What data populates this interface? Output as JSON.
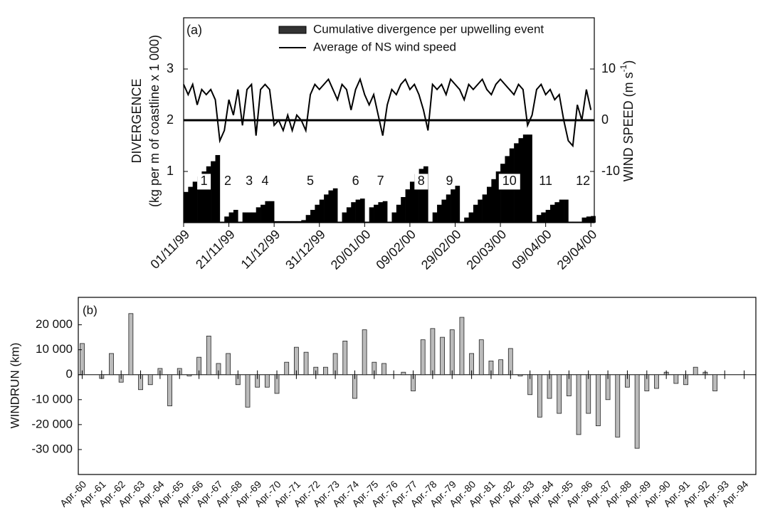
{
  "chart_data": [
    {
      "type": "combo",
      "panel_label": "(a)",
      "ylabel": [
        "DIVERGENCE",
        "(kg per m of coastline x 1 000)"
      ],
      "y2label": [
        "WIND SPEED (m s",
        "-1",
        ")"
      ],
      "legend": "top",
      "zero_line": true,
      "x": [
        0,
        2,
        4,
        6,
        8,
        10,
        12,
        14,
        16,
        18,
        20,
        22,
        24,
        26,
        28,
        30,
        32,
        34,
        36,
        38,
        40,
        42,
        44,
        46,
        48,
        50,
        52,
        54,
        56,
        58,
        60,
        62,
        64,
        66,
        68,
        70,
        72,
        74,
        76,
        78,
        80,
        82,
        84,
        86,
        88,
        90,
        92,
        94,
        96,
        98,
        100,
        102,
        104,
        106,
        108,
        110,
        112,
        114,
        116,
        118,
        120,
        122,
        124,
        126,
        128,
        130,
        132,
        134,
        136,
        138,
        140,
        142,
        144,
        146,
        148,
        150,
        152,
        154,
        156,
        158,
        160,
        162,
        164,
        166,
        168,
        170,
        172,
        174,
        176,
        178,
        180
      ],
      "xlim": [
        0,
        181.5
      ],
      "xticks": [
        {
          "value": 0,
          "label": "01/11/99"
        },
        {
          "value": 20,
          "label": "21/11/99"
        },
        {
          "value": 40,
          "label": "11/12/99"
        },
        {
          "value": 60,
          "label": "31/12/99"
        },
        {
          "value": 80,
          "label": "20/01/00"
        },
        {
          "value": 100,
          "label": "09/02/00"
        },
        {
          "value": 120,
          "label": "29/02/00"
        },
        {
          "value": 140,
          "label": "20/03/00"
        },
        {
          "value": 160,
          "label": "09/04/00"
        },
        {
          "value": 180,
          "label": "29/04/00"
        }
      ],
      "ylim": [
        0,
        4
      ],
      "yticks": [
        1,
        2,
        3
      ],
      "y2lim": [
        -20,
        20
      ],
      "y2ticks": [
        -10,
        0,
        10
      ],
      "series": [
        {
          "name": "Cumulative divergence per upwelling event",
          "type": "bar",
          "color": "#000000",
          "legend_color": "#333333",
          "values": [
            0.6,
            0.7,
            0.8,
            0.9,
            1.0,
            1.1,
            1.2,
            1.32,
            0.02,
            0.12,
            0.2,
            0.25,
            0.02,
            0.2,
            0.2,
            0.2,
            0.3,
            0.35,
            0.42,
            0.42,
            0.03,
            0.03,
            0.03,
            0.03,
            0.03,
            0.03,
            0.05,
            0.15,
            0.25,
            0.35,
            0.45,
            0.55,
            0.63,
            0.67,
            0.02,
            0.2,
            0.3,
            0.4,
            0.45,
            0.47,
            0.02,
            0.3,
            0.35,
            0.4,
            0.42,
            0.02,
            0.2,
            0.35,
            0.5,
            0.65,
            0.8,
            0.95,
            1.05,
            1.1,
            0.02,
            0.2,
            0.35,
            0.45,
            0.55,
            0.65,
            0.72,
            0.02,
            0.1,
            0.2,
            0.35,
            0.45,
            0.55,
            0.7,
            0.85,
            1.0,
            1.15,
            1.3,
            1.45,
            1.55,
            1.65,
            1.72,
            1.72,
            0.02,
            0.15,
            0.2,
            0.25,
            0.35,
            0.4,
            0.45,
            0.45,
            0.02,
            0.02,
            0.02,
            0.1,
            0.12,
            0.13
          ]
        },
        {
          "name": "Average of NS wind speed",
          "type": "line",
          "axis": "y2",
          "color": "#000000",
          "values": [
            7,
            5,
            7,
            3,
            6,
            5,
            6,
            4,
            -4,
            -2,
            4,
            1,
            6,
            -1,
            6,
            7,
            -3,
            6,
            7,
            6,
            -1,
            0,
            -2,
            1,
            -2,
            1,
            0,
            -2,
            5,
            7,
            6,
            7,
            8,
            6,
            4,
            7,
            6,
            2,
            6,
            8,
            5,
            3,
            5,
            1,
            -3,
            3,
            6,
            5,
            7,
            8,
            6,
            7,
            5,
            2,
            -2,
            7,
            6,
            7,
            5,
            8,
            7,
            6,
            4,
            7,
            6,
            7,
            8,
            6,
            5,
            7,
            8,
            7,
            6,
            5,
            7,
            6,
            -1,
            1,
            6,
            7,
            5,
            6,
            4,
            5,
            0,
            -4,
            -5,
            3,
            0,
            6,
            2
          ]
        }
      ],
      "annotations": [
        {
          "text": "1",
          "x": 9,
          "y": 0.8,
          "boxed": true
        },
        {
          "text": "2",
          "x": 19.5,
          "y": 0.8
        },
        {
          "text": "3",
          "x": 29,
          "y": 0.8
        },
        {
          "text": "4",
          "x": 36,
          "y": 0.8
        },
        {
          "text": "5",
          "x": 56,
          "y": 0.8
        },
        {
          "text": "6",
          "x": 76,
          "y": 0.8
        },
        {
          "text": "7",
          "x": 87,
          "y": 0.8
        },
        {
          "text": "8",
          "x": 105,
          "y": 0.8,
          "boxed": true
        },
        {
          "text": "9",
          "x": 117.5,
          "y": 0.8
        },
        {
          "text": "10",
          "x": 144,
          "y": 0.8,
          "boxed": true
        },
        {
          "text": "11",
          "x": 160,
          "y": 0.8
        },
        {
          "text": "12",
          "x": 176.5,
          "y": 0.8
        }
      ]
    },
    {
      "type": "bar",
      "panel_label": "(b)",
      "ylabel": "WINDRUN (km)",
      "zero_line": true,
      "color": "#bbbbbb",
      "x": [
        60,
        60.5,
        61,
        61.5,
        62,
        62.5,
        63,
        63.5,
        64,
        64.5,
        65,
        65.5,
        66,
        66.5,
        67,
        67.5,
        68,
        68.5,
        69,
        69.5,
        70,
        70.5,
        71,
        71.5,
        72,
        72.5,
        73,
        73.5,
        74,
        74.5,
        75,
        75.5,
        76,
        76.5,
        77,
        77.5,
        78,
        78.5,
        79,
        79.5,
        80,
        80.5,
        81,
        81.5,
        82,
        82.5,
        83,
        83.5,
        84,
        84.5,
        85,
        85.5,
        86,
        86.5,
        87,
        87.5,
        88,
        88.5,
        89,
        89.5,
        90,
        90.5,
        91,
        91.5,
        92,
        92.5,
        93,
        93.5
      ],
      "values": [
        12500,
        0,
        -1500,
        8500,
        -3000,
        24500,
        -6000,
        -4000,
        2500,
        -12500,
        2500,
        -500,
        7000,
        15500,
        4500,
        8500,
        -4000,
        -13000,
        -5000,
        -5000,
        -7500,
        5000,
        11000,
        9000,
        3000,
        3000,
        8500,
        13500,
        -9500,
        18000,
        5000,
        4500,
        0,
        1000,
        -6500,
        14000,
        18500,
        15000,
        18000,
        23000,
        8500,
        14000,
        5500,
        6000,
        10500,
        -500,
        -8000,
        -17000,
        -9500,
        -15500,
        -8500,
        -24000,
        -15500,
        -20500,
        -10000,
        -25000,
        -5000,
        -29500,
        -6500,
        -5500,
        1000,
        -3500,
        -4000,
        3000,
        1000,
        -6500,
        0,
        0
      ],
      "xlim": [
        59.8,
        94.6
      ],
      "xticks": [
        {
          "value": 60,
          "label": "Apr.-60"
        },
        {
          "value": 61,
          "label": "Apr.-61"
        },
        {
          "value": 62,
          "label": "Apr.-62"
        },
        {
          "value": 63,
          "label": "Apr.-63"
        },
        {
          "value": 64,
          "label": "Apr.-64"
        },
        {
          "value": 65,
          "label": "Apr.-65"
        },
        {
          "value": 66,
          "label": "Apr.-66"
        },
        {
          "value": 67,
          "label": "Apr.-67"
        },
        {
          "value": 68,
          "label": "Apr.-68"
        },
        {
          "value": 69,
          "label": "Apr.-69"
        },
        {
          "value": 70,
          "label": "Apr.-70"
        },
        {
          "value": 71,
          "label": "Apr.-71"
        },
        {
          "value": 72,
          "label": "Apr.-72"
        },
        {
          "value": 73,
          "label": "Apr.-73"
        },
        {
          "value": 74,
          "label": "Apr.-74"
        },
        {
          "value": 75,
          "label": "Apr.-75"
        },
        {
          "value": 76,
          "label": "Apr.-76"
        },
        {
          "value": 77,
          "label": "Apr.-77"
        },
        {
          "value": 78,
          "label": "Apr.-78"
        },
        {
          "value": 79,
          "label": "Apr.-79"
        },
        {
          "value": 80,
          "label": "Apr.-80"
        },
        {
          "value": 81,
          "label": "Apr.-81"
        },
        {
          "value": 82,
          "label": "Apr.-82"
        },
        {
          "value": 83,
          "label": "Apr.-83"
        },
        {
          "value": 84,
          "label": "Apr.-84"
        },
        {
          "value": 85,
          "label": "Apr.-85"
        },
        {
          "value": 86,
          "label": "Apr.-86"
        },
        {
          "value": 87,
          "label": "Apr.-87"
        },
        {
          "value": 88,
          "label": "Apr.-88"
        },
        {
          "value": 89,
          "label": "Apr.-89"
        },
        {
          "value": 90,
          "label": "Apr.-90"
        },
        {
          "value": 91,
          "label": "Apr.-91"
        },
        {
          "value": 92,
          "label": "Apr.-92"
        },
        {
          "value": 93,
          "label": "Apr.-93"
        },
        {
          "value": 94,
          "label": "Apr.-94"
        }
      ],
      "ylim": [
        -40000,
        31000
      ],
      "yticks": [
        {
          "value": -30000,
          "label": "-30 000"
        },
        {
          "value": -20000,
          "label": "-20 000"
        },
        {
          "value": -10000,
          "label": "-10 000"
        },
        0,
        {
          "value": 10000,
          "label": "10 000"
        },
        {
          "value": 20000,
          "label": "20 000"
        }
      ]
    }
  ]
}
